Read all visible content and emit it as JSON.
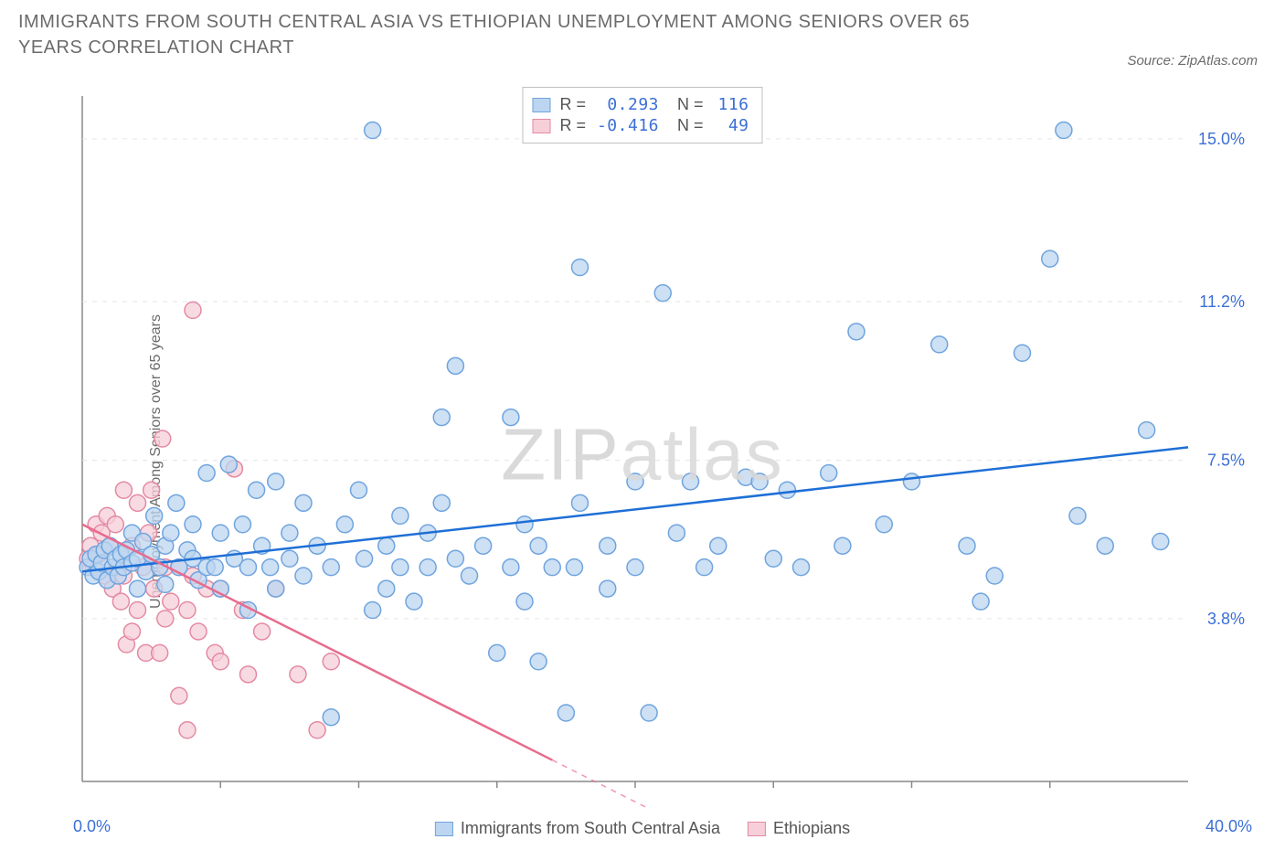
{
  "title": "IMMIGRANTS FROM SOUTH CENTRAL ASIA VS ETHIOPIAN UNEMPLOYMENT AMONG SENIORS OVER 65 YEARS CORRELATION CHART",
  "source": "Source: ZipAtlas.com",
  "watermark_a": "ZIP",
  "watermark_b": "atlas",
  "ylabel": "Unemployment Among Seniors over 65 years",
  "chart": {
    "type": "scatter",
    "background_color": "#ffffff",
    "grid_color": "#e5e5e5",
    "border_color": "#888888",
    "xlim": [
      0,
      40
    ],
    "ylim": [
      0,
      16
    ],
    "x_axis_min_label": "0.0%",
    "x_axis_max_label": "40.0%",
    "y_tick_values": [
      3.8,
      7.5,
      11.2,
      15.0
    ],
    "y_tick_labels": [
      "3.8%",
      "7.5%",
      "11.2%",
      "15.0%"
    ],
    "x_minor_ticks": [
      5,
      10,
      15,
      20,
      25,
      30,
      35
    ],
    "marker_radius": 9,
    "marker_stroke_width": 1.5,
    "line_width": 2.5,
    "series": [
      {
        "id": "sca",
        "label": "Immigrants from South Central Asia",
        "fill": "#bcd5f0",
        "stroke": "#6fa4de",
        "line_color": "#1e6fd6",
        "R": "0.293",
        "N": "116",
        "trend": {
          "x1": 0,
          "y1": 4.9,
          "x2": 40,
          "y2": 7.8
        },
        "points": [
          [
            0.2,
            5.0
          ],
          [
            0.3,
            5.2
          ],
          [
            0.4,
            4.8
          ],
          [
            0.5,
            5.3
          ],
          [
            0.6,
            4.9
          ],
          [
            0.7,
            5.1
          ],
          [
            0.8,
            5.4
          ],
          [
            0.9,
            4.7
          ],
          [
            1.0,
            5.5
          ],
          [
            1.1,
            5.0
          ],
          [
            1.2,
            5.2
          ],
          [
            1.3,
            4.8
          ],
          [
            1.4,
            5.3
          ],
          [
            1.5,
            5.0
          ],
          [
            1.6,
            5.4
          ],
          [
            1.8,
            5.1
          ],
          [
            1.8,
            5.8
          ],
          [
            2.0,
            4.5
          ],
          [
            2.0,
            5.2
          ],
          [
            2.2,
            5.6
          ],
          [
            2.3,
            4.9
          ],
          [
            2.5,
            5.3
          ],
          [
            2.6,
            6.2
          ],
          [
            2.8,
            5.0
          ],
          [
            3.0,
            5.5
          ],
          [
            3.0,
            4.6
          ],
          [
            3.2,
            5.8
          ],
          [
            3.4,
            6.5
          ],
          [
            3.5,
            5.0
          ],
          [
            3.8,
            5.4
          ],
          [
            4.0,
            6.0
          ],
          [
            4.0,
            5.2
          ],
          [
            4.2,
            4.7
          ],
          [
            4.5,
            5.0
          ],
          [
            4.5,
            7.2
          ],
          [
            4.8,
            5.0
          ],
          [
            5.0,
            5.8
          ],
          [
            5.0,
            4.5
          ],
          [
            5.3,
            7.4
          ],
          [
            5.5,
            5.2
          ],
          [
            5.8,
            6.0
          ],
          [
            6.0,
            4.0
          ],
          [
            6.0,
            5.0
          ],
          [
            6.3,
            6.8
          ],
          [
            6.5,
            5.5
          ],
          [
            6.8,
            5.0
          ],
          [
            7.0,
            7.0
          ],
          [
            7.0,
            4.5
          ],
          [
            7.5,
            5.2
          ],
          [
            7.5,
            5.8
          ],
          [
            8.0,
            6.5
          ],
          [
            8.0,
            4.8
          ],
          [
            8.5,
            5.5
          ],
          [
            9.0,
            1.5
          ],
          [
            9.0,
            5.0
          ],
          [
            9.5,
            6.0
          ],
          [
            10.0,
            6.8
          ],
          [
            10.2,
            5.2
          ],
          [
            10.5,
            4.0
          ],
          [
            10.5,
            15.2
          ],
          [
            11.0,
            5.5
          ],
          [
            11.0,
            4.5
          ],
          [
            11.5,
            6.2
          ],
          [
            11.5,
            5.0
          ],
          [
            12.0,
            4.2
          ],
          [
            12.5,
            5.0
          ],
          [
            12.5,
            5.8
          ],
          [
            13.0,
            6.5
          ],
          [
            13.0,
            8.5
          ],
          [
            13.5,
            9.7
          ],
          [
            13.5,
            5.2
          ],
          [
            14.0,
            4.8
          ],
          [
            14.5,
            5.5
          ],
          [
            15.0,
            3.0
          ],
          [
            15.5,
            8.5
          ],
          [
            15.5,
            5.0
          ],
          [
            16.0,
            4.2
          ],
          [
            16.0,
            6.0
          ],
          [
            16.5,
            5.5
          ],
          [
            16.5,
            2.8
          ],
          [
            17.0,
            5.0
          ],
          [
            17.5,
            1.6
          ],
          [
            17.8,
            5.0
          ],
          [
            18.0,
            12.0
          ],
          [
            18.0,
            6.5
          ],
          [
            19.0,
            5.5
          ],
          [
            19.0,
            4.5
          ],
          [
            20.0,
            5.0
          ],
          [
            20.0,
            7.0
          ],
          [
            20.5,
            1.6
          ],
          [
            21.0,
            11.4
          ],
          [
            21.5,
            5.8
          ],
          [
            22.0,
            7.0
          ],
          [
            22.5,
            5.0
          ],
          [
            23.0,
            5.5
          ],
          [
            24.0,
            7.1
          ],
          [
            24.5,
            7.0
          ],
          [
            25.0,
            5.2
          ],
          [
            25.5,
            6.8
          ],
          [
            26.0,
            5.0
          ],
          [
            27.0,
            7.2
          ],
          [
            27.5,
            5.5
          ],
          [
            28.0,
            10.5
          ],
          [
            29.0,
            6.0
          ],
          [
            30.0,
            7.0
          ],
          [
            31.0,
            10.2
          ],
          [
            32.0,
            5.5
          ],
          [
            32.5,
            4.2
          ],
          [
            33.0,
            4.8
          ],
          [
            34.0,
            10.0
          ],
          [
            35.0,
            12.2
          ],
          [
            35.5,
            15.2
          ],
          [
            36.0,
            6.2
          ],
          [
            37.0,
            5.5
          ],
          [
            38.5,
            8.2
          ],
          [
            39.0,
            5.6
          ]
        ]
      },
      {
        "id": "eth",
        "label": "Ethiopians",
        "fill": "#f6cfd8",
        "stroke": "#e48aa3",
        "line_color": "#e86b8e",
        "R": "-0.416",
        "N": "49",
        "trend_solid": {
          "x1": 0,
          "y1": 6.0,
          "x2": 17,
          "y2": 0.5
        },
        "trend_dashed": {
          "x1": 17,
          "y1": 0.5,
          "x2": 21,
          "y2": -0.8
        },
        "points": [
          [
            0.2,
            5.2
          ],
          [
            0.3,
            5.5
          ],
          [
            0.4,
            5.0
          ],
          [
            0.5,
            6.0
          ],
          [
            0.6,
            5.3
          ],
          [
            0.7,
            5.8
          ],
          [
            0.8,
            4.8
          ],
          [
            0.9,
            6.2
          ],
          [
            1.0,
            5.5
          ],
          [
            1.1,
            4.5
          ],
          [
            1.2,
            6.0
          ],
          [
            1.3,
            5.0
          ],
          [
            1.4,
            4.2
          ],
          [
            1.5,
            6.8
          ],
          [
            1.5,
            4.8
          ],
          [
            1.6,
            3.2
          ],
          [
            1.8,
            5.5
          ],
          [
            1.8,
            3.5
          ],
          [
            2.0,
            6.5
          ],
          [
            2.0,
            4.0
          ],
          [
            2.2,
            5.0
          ],
          [
            2.3,
            3.0
          ],
          [
            2.4,
            5.8
          ],
          [
            2.5,
            6.8
          ],
          [
            2.6,
            4.5
          ],
          [
            2.8,
            3.0
          ],
          [
            2.9,
            8.0
          ],
          [
            3.0,
            5.0
          ],
          [
            3.0,
            3.8
          ],
          [
            3.2,
            4.2
          ],
          [
            3.5,
            5.0
          ],
          [
            3.5,
            2.0
          ],
          [
            3.8,
            4.0
          ],
          [
            3.8,
            1.2
          ],
          [
            4.0,
            4.8
          ],
          [
            4.0,
            11.0
          ],
          [
            4.2,
            3.5
          ],
          [
            4.5,
            4.5
          ],
          [
            4.8,
            3.0
          ],
          [
            5.0,
            2.8
          ],
          [
            5.0,
            4.5
          ],
          [
            5.5,
            7.3
          ],
          [
            5.8,
            4.0
          ],
          [
            6.0,
            2.5
          ],
          [
            6.5,
            3.5
          ],
          [
            7.0,
            4.5
          ],
          [
            7.8,
            2.5
          ],
          [
            8.5,
            1.2
          ],
          [
            9.0,
            2.8
          ]
        ]
      }
    ]
  },
  "legend_top": {
    "r_label": "R =",
    "n_label": "N ="
  }
}
